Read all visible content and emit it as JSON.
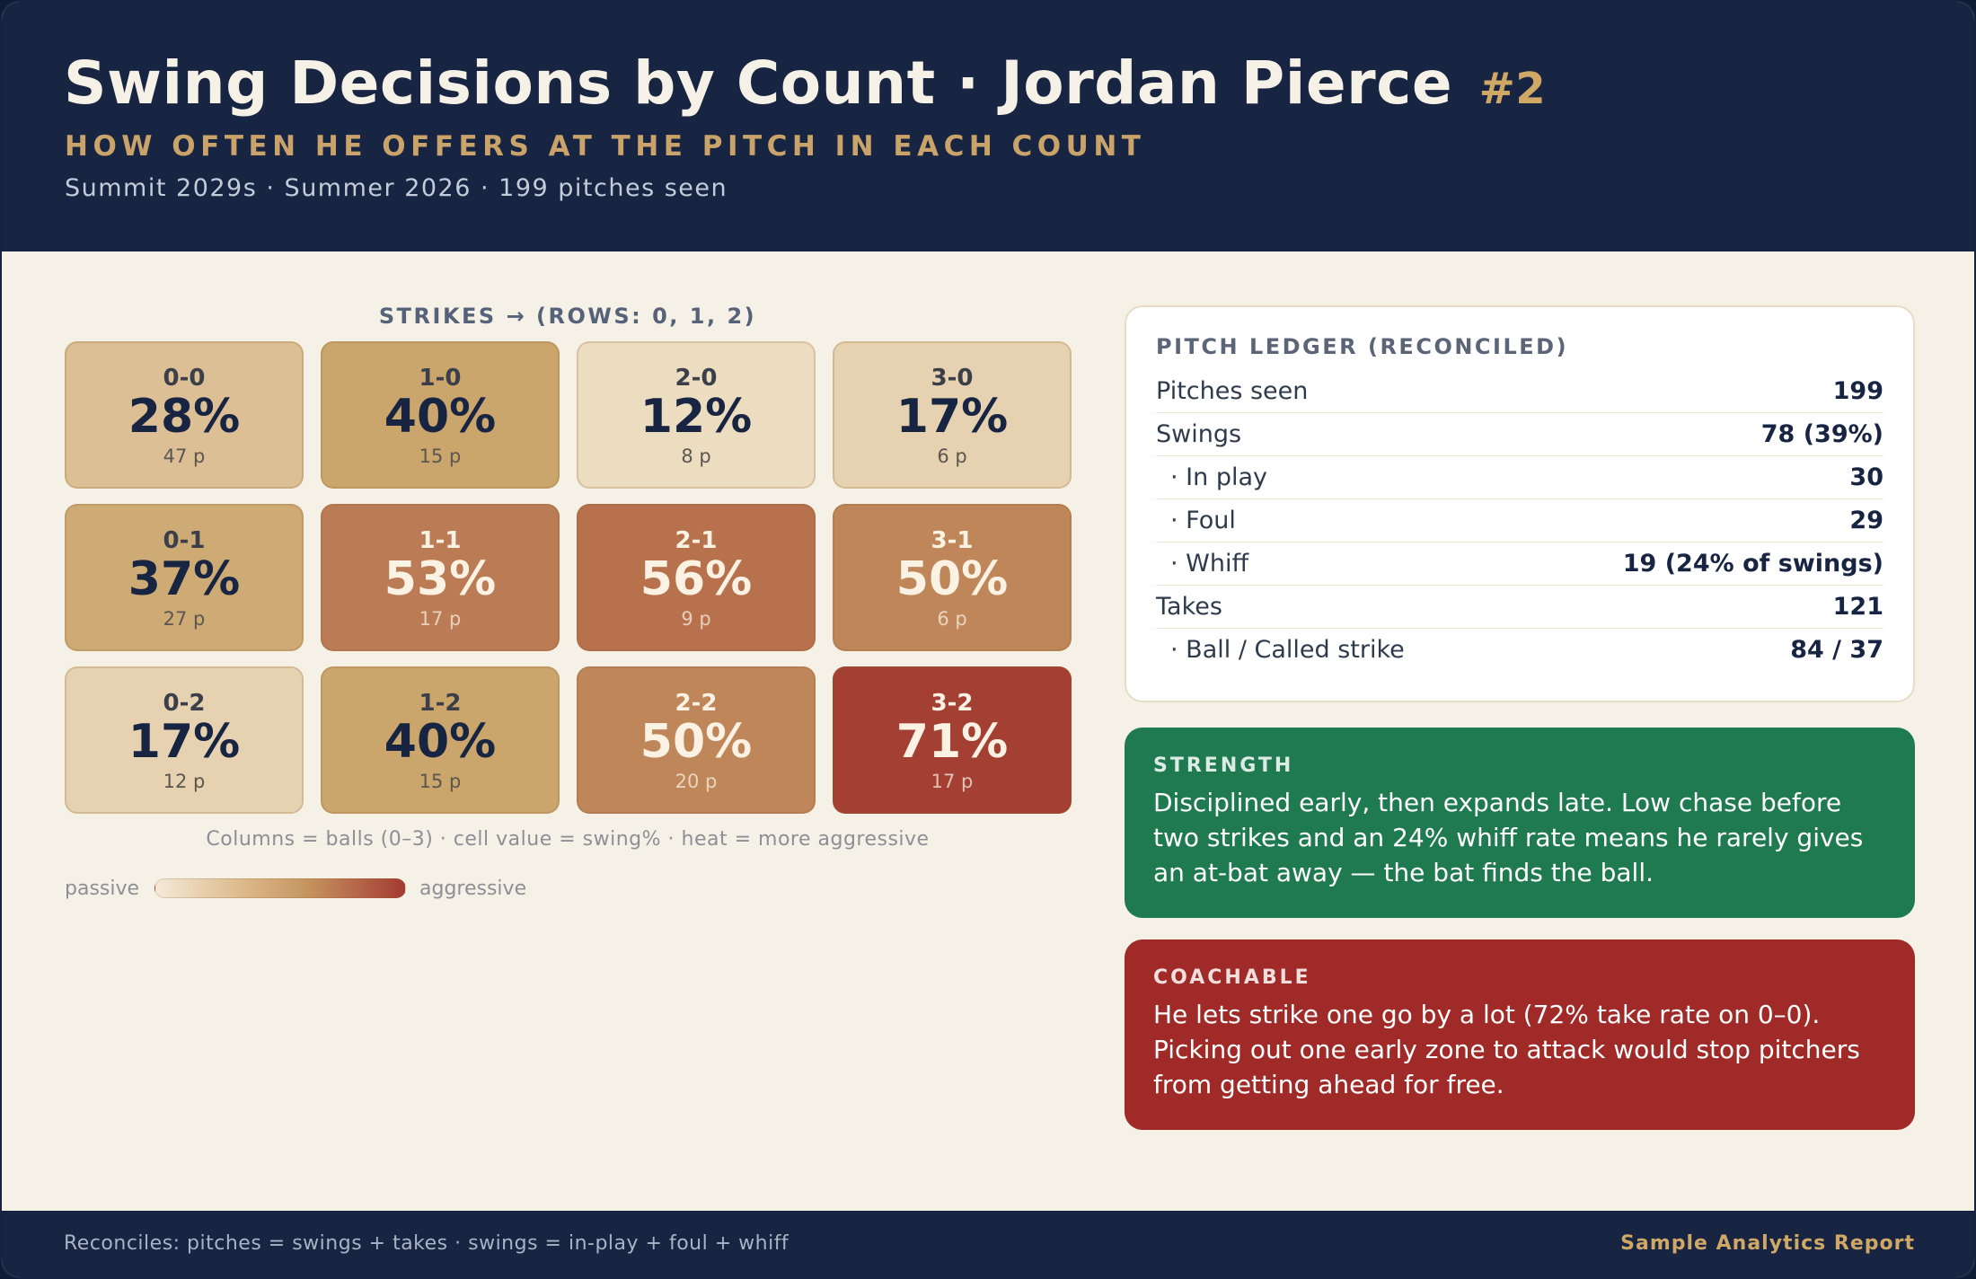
{
  "header": {
    "title": "Swing Decisions by Count · Jordan Pierce",
    "number": "#2",
    "subtitle": "HOW OFTEN HE OFFERS AT THE PITCH IN EACH COUNT",
    "meta": "Summit 2029s · Summer 2026 · 199 pitches seen"
  },
  "grid": {
    "title": "STRIKES → (ROWS: 0, 1, 2)",
    "note": "Columns = balls (0–3) · cell value = swing% · heat = more aggressive",
    "legend_low": "passive",
    "legend_high": "aggressive",
    "cells": [
      [
        {
          "count": "0-0",
          "pct": "28%",
          "pitches": "47 p",
          "color": "#dcbf94"
        },
        {
          "count": "1-0",
          "pct": "40%",
          "pitches": "15 p",
          "color": "#cba66c"
        },
        {
          "count": "2-0",
          "pct": "12%",
          "pitches": "8 p",
          "color": "#ecdcc0"
        },
        {
          "count": "3-0",
          "pct": "17%",
          "pitches": "6 p",
          "color": "#e6d2b0"
        }
      ],
      [
        {
          "count": "0-1",
          "pct": "37%",
          "pitches": "27 p",
          "color": "#ceab74"
        },
        {
          "count": "1-1",
          "pct": "53%",
          "pitches": "17 p",
          "color": "#ba7b55"
        },
        {
          "count": "2-1",
          "pct": "56%",
          "pitches": "9 p",
          "color": "#b7714d"
        },
        {
          "count": "3-1",
          "pct": "50%",
          "pitches": "6 p",
          "color": "#bf8759"
        }
      ],
      [
        {
          "count": "0-2",
          "pct": "17%",
          "pitches": "12 p",
          "color": "#e6d2b0"
        },
        {
          "count": "1-2",
          "pct": "40%",
          "pitches": "15 p",
          "color": "#cba66c"
        },
        {
          "count": "2-2",
          "pct": "50%",
          "pitches": "20 p",
          "color": "#bf8759"
        },
        {
          "count": "3-2",
          "pct": "71%",
          "pitches": "17 p",
          "color": "#a43f33"
        }
      ]
    ]
  },
  "ledger": {
    "title": "PITCH LEDGER (RECONCILED)",
    "rows": [
      {
        "label": "Pitches seen",
        "value": "199"
      },
      {
        "label": "Swings",
        "value": "78 (39%)"
      },
      {
        "label": "· In play",
        "value": "30"
      },
      {
        "label": "· Foul",
        "value": "29"
      },
      {
        "label": "· Whiff",
        "value": "19 (24% of swings)"
      },
      {
        "label": "Takes",
        "value": "121"
      },
      {
        "label": "· Ball / Called strike",
        "value": "84 / 37"
      }
    ]
  },
  "strength": {
    "kicker": "STRENGTH",
    "text": "Disciplined early, then expands late. Low chase before two strikes and an 24% whiff rate means he rarely gives an at-bat away — the bat finds the ball."
  },
  "coachable": {
    "kicker": "COACHABLE",
    "text": "He lets strike one go by a lot (72% take rate on 0–0). Picking out one early zone to attack would stop pitchers from getting ahead for free."
  },
  "footer": {
    "left": "Reconciles: pitches = swings + takes · swings = in-play + foul + whiff",
    "right": "Sample Analytics Report"
  }
}
